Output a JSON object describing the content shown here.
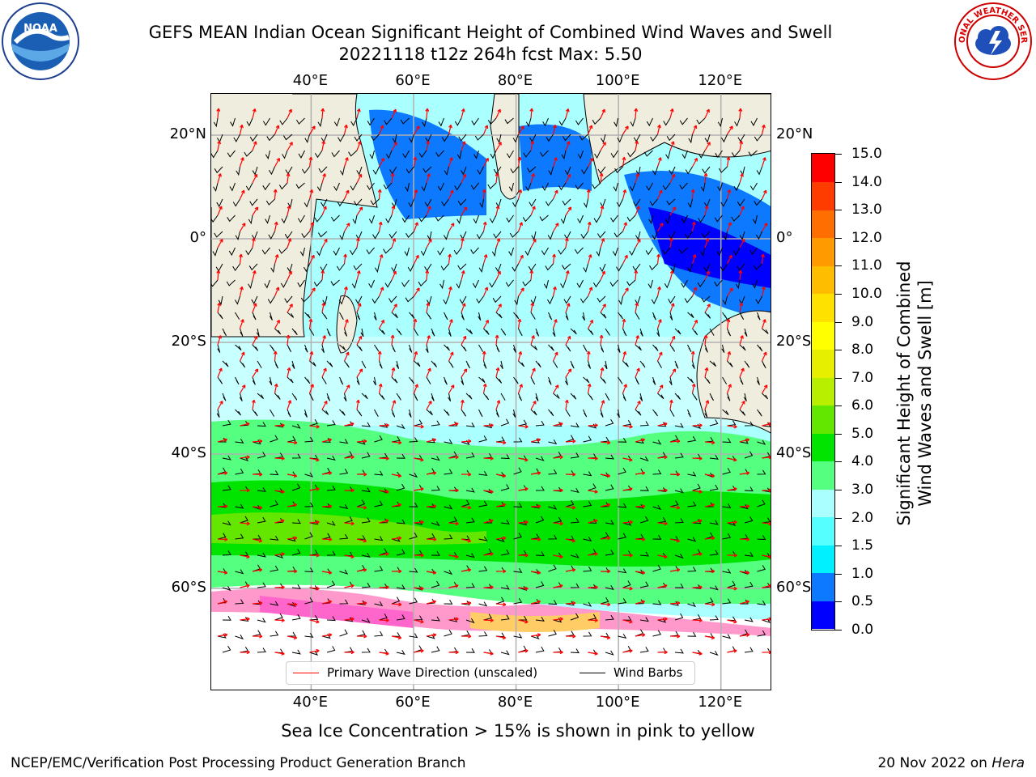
{
  "title": {
    "line1": "GEFS MEAN Indian Ocean Significant Height of Combined Wind Waves and Swell",
    "line2": "20221118 t12z 264h fcst   Max: 5.50"
  },
  "logos": {
    "left": {
      "name": "noaa-logo",
      "text": "NOAA"
    },
    "right": {
      "name": "nws-logo",
      "text": "NATIONAL WEATHER SERVICE"
    }
  },
  "map": {
    "lon_ticks": [
      {
        "label": "40°E",
        "value": 40
      },
      {
        "label": "60°E",
        "value": 60
      },
      {
        "label": "80°E",
        "value": 80
      },
      {
        "label": "100°E",
        "value": 100
      },
      {
        "label": "120°E",
        "value": 120
      }
    ],
    "lat_ticks": [
      {
        "label": "20°N",
        "value": 20
      },
      {
        "label": "0°",
        "value": 0
      },
      {
        "label": "20°S",
        "value": -20
      },
      {
        "label": "40°S",
        "value": -40
      },
      {
        "label": "60°S",
        "value": -60
      }
    ],
    "land_color": "#efedde",
    "ocean_color_default": "#aaffff"
  },
  "legend": {
    "wave_label": "Primary Wave Direction (unscaled)",
    "wave_color": "#ff0000",
    "wind_label": "Wind Barbs",
    "wind_color": "#000000"
  },
  "colorbar": {
    "label_line1": "Significant Height of Combined",
    "label_line2": "Wind Waves and Swell [m]",
    "ticks": [
      "0.0",
      "0.5",
      "1.0",
      "1.5",
      "2.0",
      "3.0",
      "4.0",
      "5.0",
      "6.0",
      "7.0",
      "8.0",
      "9.0",
      "10.0",
      "11.0",
      "12.0",
      "13.0",
      "14.0",
      "15.0"
    ],
    "colors": [
      "#0000ff",
      "#0c79ff",
      "#00f0ff",
      "#55ffff",
      "#aaffff",
      "#55ff80",
      "#00e400",
      "#64e700",
      "#b8ef00",
      "#e6ef00",
      "#ffff00",
      "#ffe100",
      "#ffbd00",
      "#ff9a00",
      "#ff6e00",
      "#ff3c00",
      "#ff0000"
    ]
  },
  "ice_note": "Sea Ice Concentration > 15% is shown in pink to yellow",
  "footer": {
    "left": "NCEP/EMC/Verification Post Processing Product Generation Branch",
    "right_date": "20 Nov 2022 on",
    "right_machine": "Hera"
  }
}
